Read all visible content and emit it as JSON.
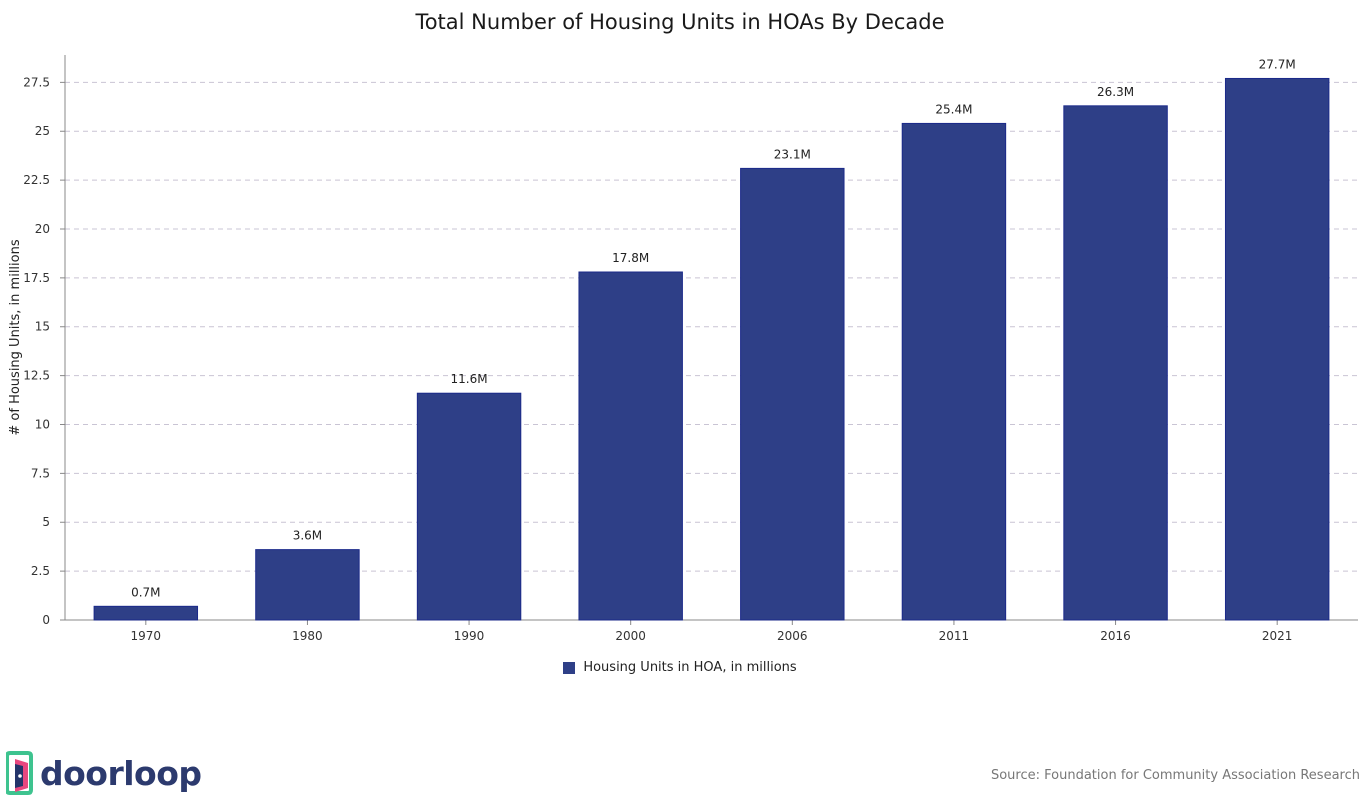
{
  "chart_data": {
    "type": "bar",
    "title": "Total Number of Housing Units in HOAs By Decade",
    "xlabel": "",
    "ylabel": "# of Housing Units, in millions",
    "categories": [
      "1970",
      "1980",
      "1990",
      "2000",
      "2006",
      "2011",
      "2016",
      "2021"
    ],
    "series": [
      {
        "name": "Housing Units in HOA, in millions",
        "values": [
          0.7,
          3.6,
          11.6,
          17.8,
          23.1,
          25.4,
          26.3,
          27.7
        ],
        "labels": [
          "0.7M",
          "3.6M",
          "11.6M",
          "17.8M",
          "23.1M",
          "25.4M",
          "26.3M",
          "27.7M"
        ],
        "color": "#2e3f87"
      }
    ],
    "ylim": [
      0,
      28.9
    ],
    "yticks": [
      0,
      2.5,
      5,
      7.5,
      10,
      12.5,
      15,
      17.5,
      20,
      22.5,
      25,
      27.5
    ],
    "ytick_labels": [
      "0",
      "2.5",
      "5",
      "7.5",
      "10",
      "12.5",
      "15",
      "17.5",
      "20",
      "22.5",
      "25",
      "27.5"
    ],
    "grid": "horizontal-dashed",
    "legend_position": "bottom-center"
  },
  "footer": {
    "brand": "doorloop",
    "source": "Source: Foundation for Community Association Research"
  },
  "colors": {
    "bar": "#2e3f87",
    "bar_edge": "#1b2a8a",
    "grid": "#c9c4d4",
    "axis": "#888888",
    "logo_text": "#2c3a6e",
    "logo_green": "#3ec38f",
    "logo_pink": "#e8477f",
    "logo_navy": "#24346a"
  }
}
